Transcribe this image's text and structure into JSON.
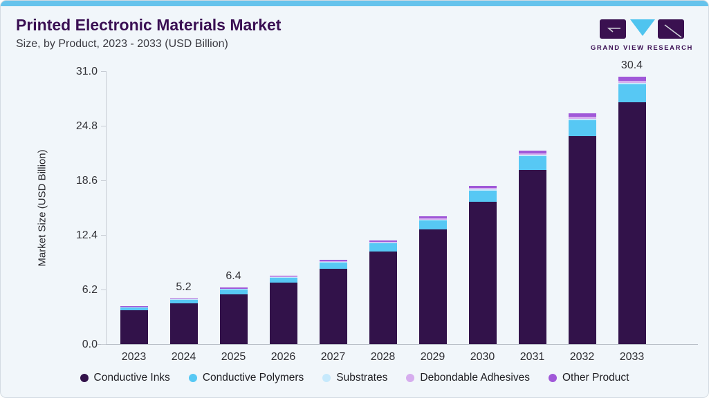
{
  "header": {
    "title": "Printed Electronic Materials Market",
    "subtitle": "Size, by Product, 2023 - 2033 (USD Billion)",
    "logo_text": "GRAND VIEW RESEARCH"
  },
  "colors": {
    "accent_strip": "#66c3ec",
    "card_background": "#f1f6fa",
    "title_text": "#3a0f53",
    "axis_line": "#c6cbd3",
    "logo_dark": "#3a1150",
    "logo_cyan": "#4fc4ef"
  },
  "chart_data": {
    "type": "bar",
    "stacked": true,
    "title": "Printed Electronic Materials Market",
    "subtitle": "Size, by Product, 2023 - 2033 (USD Billion)",
    "xlabel": "",
    "ylabel": "Market Size (USD Billion)",
    "ylim": [
      0,
      31
    ],
    "yticks": [
      "0.0",
      "6.2",
      "12.4",
      "18.6",
      "24.8",
      "31.0"
    ],
    "grid": false,
    "legend_position": "bottom",
    "categories": [
      "2023",
      "2024",
      "2025",
      "2026",
      "2027",
      "2028",
      "2029",
      "2030",
      "2031",
      "2032",
      "2033"
    ],
    "totals": [
      4.3,
      5.2,
      6.4,
      7.8,
      9.6,
      11.8,
      14.5,
      18.0,
      22.0,
      26.2,
      30.4
    ],
    "value_labels": {
      "2024": "5.2",
      "2025": "6.4",
      "2033": "30.4"
    },
    "series": [
      {
        "name": "Conductive Inks",
        "color": "#32124a",
        "values": [
          3.81,
          4.61,
          5.69,
          6.95,
          8.56,
          10.55,
          12.99,
          16.17,
          19.81,
          23.65,
          27.48
        ]
      },
      {
        "name": "Conductive Polymers",
        "color": "#57c8f4",
        "values": [
          0.36,
          0.43,
          0.52,
          0.62,
          0.74,
          0.89,
          1.06,
          1.28,
          1.52,
          1.76,
          2.0
        ]
      },
      {
        "name": "Substrates",
        "color": "#c6e9fc",
        "values": [
          0.03,
          0.04,
          0.04,
          0.05,
          0.07,
          0.08,
          0.1,
          0.12,
          0.15,
          0.17,
          0.2
        ]
      },
      {
        "name": "Debondable Adhesives",
        "color": "#d6adee",
        "values": [
          0.03,
          0.04,
          0.05,
          0.06,
          0.08,
          0.09,
          0.12,
          0.14,
          0.17,
          0.21,
          0.24
        ]
      },
      {
        "name": "Other Product",
        "color": "#a058d8",
        "values": [
          0.07,
          0.08,
          0.1,
          0.12,
          0.15,
          0.19,
          0.23,
          0.29,
          0.35,
          0.41,
          0.48
        ]
      }
    ]
  }
}
